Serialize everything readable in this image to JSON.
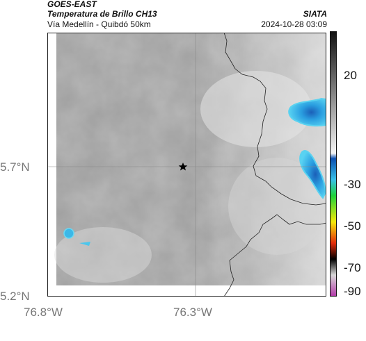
{
  "header": {
    "satellite": "GOES-EAST",
    "product": "Temperatura de Brillo CH13",
    "region": "Vía Medellín - Quibdó 50km",
    "org": "SIATA",
    "datetime": "2024-10-28 03:09"
  },
  "axes": {
    "lat_labels": [
      "5.7°N",
      "5.2°N"
    ],
    "lon_labels": [
      "76.8°W",
      "76.3°W"
    ]
  },
  "colorbar": {
    "labels": [
      "20",
      "-30",
      "-50",
      "-70",
      "-90"
    ],
    "stops": [
      "#111111",
      "#ffffff",
      "#1fa8d8",
      "#1fd23a",
      "#f5e80a",
      "#e22a0a",
      "#000000",
      "#cfcfcf",
      "#b23aa8"
    ]
  },
  "map": {
    "marker_icon": "star-icon",
    "cloud_color_cold": "#1e7fd0",
    "cloud_color_edge": "#55d0f0"
  }
}
